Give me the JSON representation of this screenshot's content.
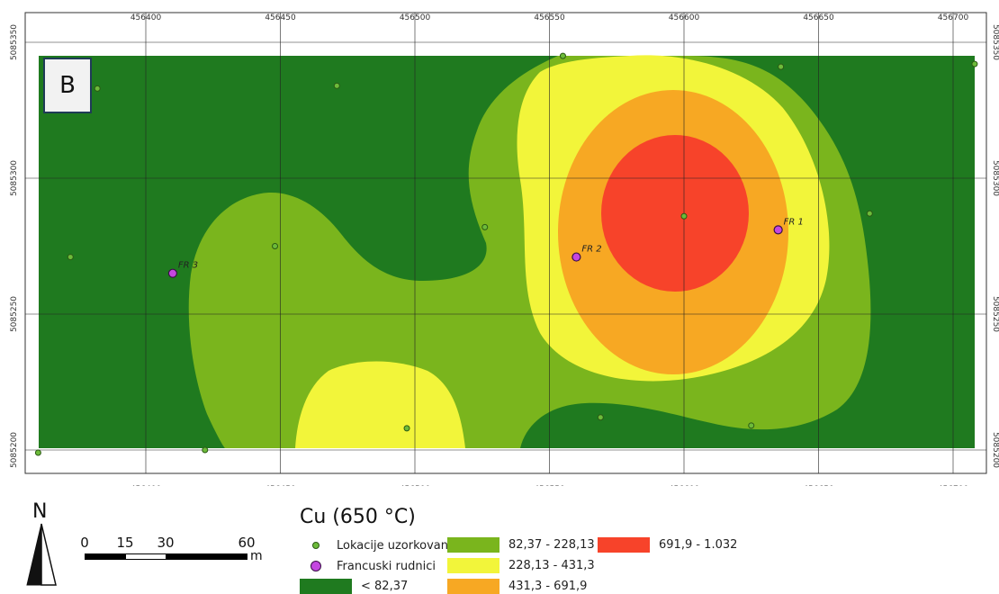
{
  "panel_label": "B",
  "axes": {
    "x_ticks": [
      "456400",
      "456450",
      "456500",
      "456550",
      "456600",
      "456650",
      "456700"
    ],
    "y_ticks": [
      "5085350",
      "5085300",
      "5085250",
      "5085200"
    ]
  },
  "north_arrow": {
    "letter": "N",
    "icon": "north-arrow-icon"
  },
  "scale_bar": {
    "labels": [
      "0",
      "15",
      "30",
      "60"
    ],
    "unit": "m"
  },
  "legend": {
    "title": "Cu (650 °C)",
    "sample_points_label": "Lokacije uzorkovanja",
    "mines_label": "Francuski rudnici",
    "classes": [
      {
        "label": "< 82,37",
        "color": "#1f7a1f"
      },
      {
        "label": "82,37 - 228,13",
        "color": "#7ab51d"
      },
      {
        "label": "228,13 - 431,3",
        "color": "#f2f53a"
      },
      {
        "label": "431,3 - 691,9",
        "color": "#f7a823"
      },
      {
        "label": "691,9 - 1.032",
        "color": "#f7432a"
      }
    ]
  },
  "mines": [
    {
      "label": "FR 1",
      "x": 456635,
      "y": 5085281
    },
    {
      "label": "FR 2",
      "x": 456560,
      "y": 5085271
    },
    {
      "label": "FR 3",
      "x": 456410,
      "y": 5085265
    }
  ],
  "samples": [
    {
      "x": 456360,
      "y": 5085199
    },
    {
      "x": 456372,
      "y": 5085271
    },
    {
      "x": 456382,
      "y": 5085333
    },
    {
      "x": 456422,
      "y": 5085200
    },
    {
      "x": 456448,
      "y": 5085275
    },
    {
      "x": 456471,
      "y": 5085334
    },
    {
      "x": 456497,
      "y": 5085208
    },
    {
      "x": 456526,
      "y": 5085282
    },
    {
      "x": 456555,
      "y": 5085345
    },
    {
      "x": 456569,
      "y": 5085212
    },
    {
      "x": 456600,
      "y": 5085286
    },
    {
      "x": 456625,
      "y": 5085209
    },
    {
      "x": 456636,
      "y": 5085341
    },
    {
      "x": 456669,
      "y": 5085287
    },
    {
      "x": 456708,
      "y": 5085342
    }
  ]
}
